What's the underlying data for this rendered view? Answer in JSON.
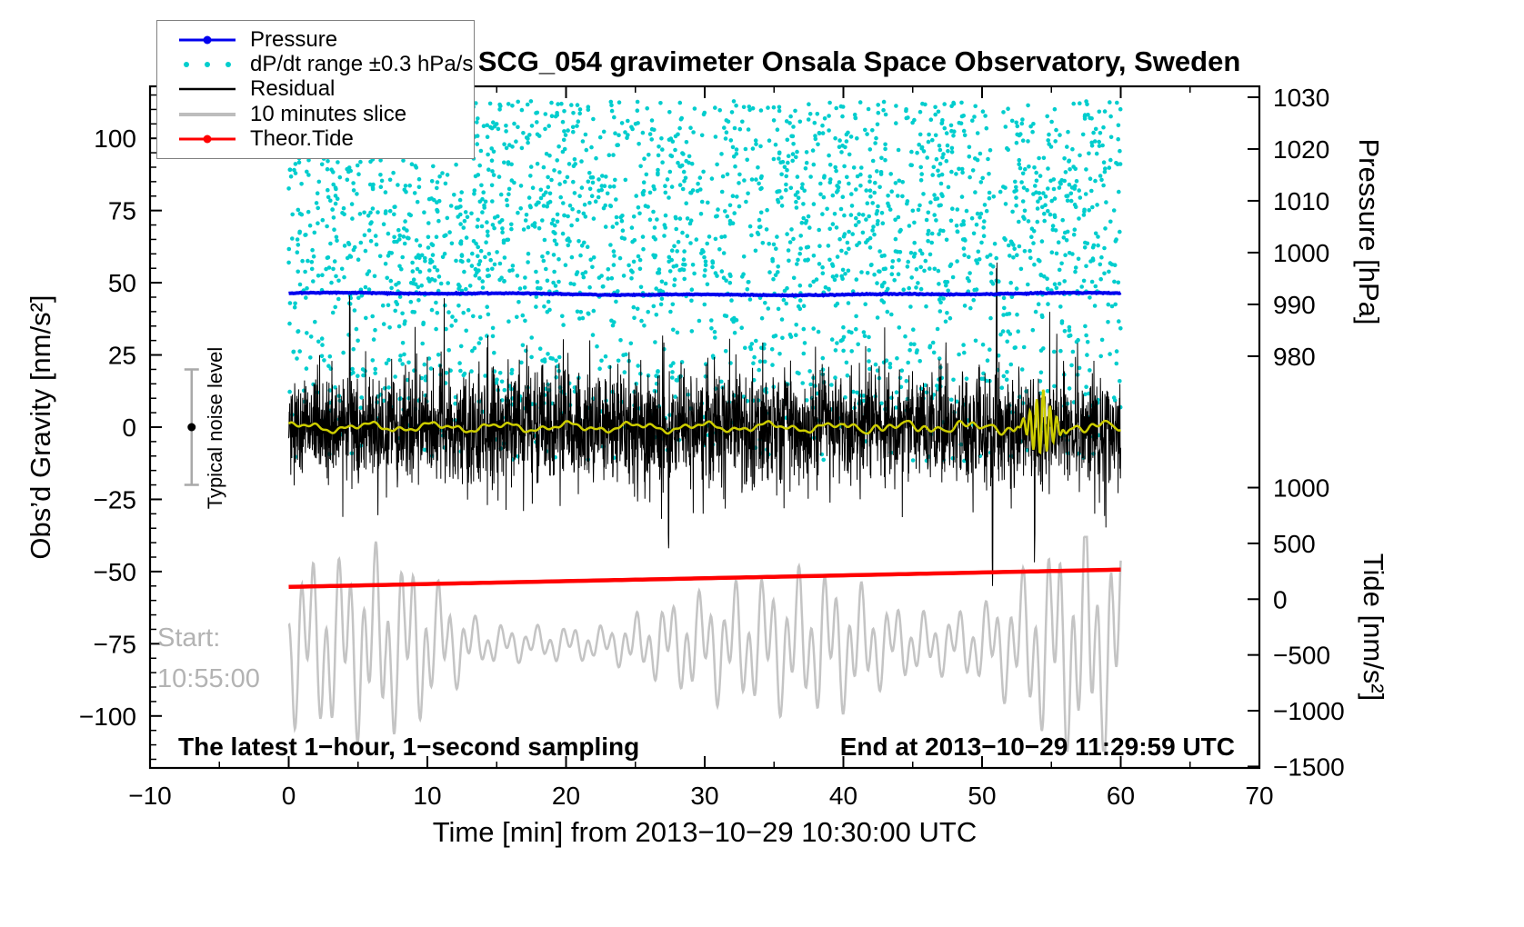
{
  "title": "SCG_054 gravimeter Onsala Space Observatory, Sweden",
  "legend": {
    "items": [
      {
        "label": "Pressure",
        "color": "#0000ee",
        "marker": "dot-line"
      },
      {
        "label": "dP/dt range ±0.3 hPa/s",
        "color": "#00cdcd",
        "marker": "dots"
      },
      {
        "label": "Residual",
        "color": "#000000",
        "marker": "line"
      },
      {
        "label": "10 minutes slice",
        "color": "#bdbdbd",
        "marker": "thick-line"
      },
      {
        "label": "Theor.Tide",
        "color": "#ff0000",
        "marker": "dot-line"
      }
    ]
  },
  "annotations": {
    "start_label": "Start:",
    "start_time": "10:55:00",
    "bottom_left": "The latest 1−hour, 1−second sampling",
    "bottom_right": "End at 2013−10−29 11:29:59 UTC"
  },
  "chart_data": {
    "type": "mixed",
    "title": "SCG_054 gravimeter Onsala Space Observatory, Sweden",
    "xlabel": "Time [min] from 2013−10−29 10:30:00 UTC",
    "legend_position": "top-left",
    "grid": false,
    "axes": {
      "x": {
        "range": [
          -10,
          70
        ],
        "ticks": [
          -10,
          0,
          10,
          20,
          30,
          40,
          50,
          60,
          70
        ],
        "minor_step": 5
      },
      "gravity": {
        "label": "Obs’d Gravity [nm/s²]",
        "side": "left",
        "range": [
          -118,
          118
        ],
        "ticks": [
          -100,
          -75,
          -50,
          -25,
          0,
          25,
          50,
          75,
          100
        ],
        "minor_step": 5
      },
      "pressure": {
        "label": "Pressure [hPa]",
        "side": "right-top",
        "range": [
          900.5,
          1032.1
        ],
        "ticks": [
          1030,
          1020,
          1010,
          1000,
          990,
          980
        ]
      },
      "tide": {
        "label": "Tide [nm/s²]",
        "side": "right-bottom",
        "range": [
          -1513,
          4597
        ],
        "ticks": [
          1000,
          500,
          0,
          -500,
          -1000,
          -1500
        ]
      }
    },
    "series": [
      {
        "name": "Pressure",
        "type": "line",
        "axis": "pressure",
        "color": "#0000ee",
        "width": 4,
        "x_span": [
          0,
          60
        ],
        "mean_hPa": 992,
        "variation_hPa": 0.3
      },
      {
        "name": "dP/dt range ±0.3 hPa/s",
        "type": "scatter",
        "axis": "gravity",
        "color": "#00cdcd",
        "dot_radius": 2.3,
        "count": 2600,
        "x_span": [
          0,
          60
        ],
        "bands": [
          {
            "min": 45,
            "max": 113,
            "weight": 0.72
          },
          {
            "min": 8,
            "max": 45,
            "weight": 0.22
          },
          {
            "min": -12,
            "max": 8,
            "weight": 0.06
          }
        ]
      },
      {
        "name": "Residual",
        "type": "noisy-line",
        "axis": "gravity",
        "color": "#000000",
        "width": 1,
        "x_span": [
          0,
          60
        ],
        "points": 3200,
        "mean": 0,
        "std": 9.5,
        "spike_prob": 0.08,
        "spike_std": 13,
        "min": -55,
        "max": 57,
        "events": [
          {
            "t": 4.4,
            "value": 44
          },
          {
            "t": 27.4,
            "value": -43
          },
          {
            "t": 50.75,
            "value": -53
          },
          {
            "t": 51.05,
            "value": 50
          },
          {
            "t": 53.8,
            "value": -42
          }
        ]
      },
      {
        "name": "Residual lowpass",
        "type": "smooth-line",
        "axis": "gravity",
        "color": "#cdcd00",
        "width": 2.5,
        "x_span": [
          0,
          60
        ],
        "amplitude": 2,
        "anomaly": {
          "t": 54.3,
          "amplitude": 11,
          "sigma": 0.7
        }
      },
      {
        "name": "10 minutes slice",
        "type": "oscillation",
        "axis": "gravity",
        "color": "#c4c4c4",
        "width": 2.5,
        "x_span": [
          0,
          60
        ],
        "mean": -75,
        "amp_base": 13,
        "amp_burst_t": [
          9.5,
          40,
          56
        ],
        "period_main": 0.9,
        "period_slow": 2.35
      },
      {
        "name": "Theor.Tide",
        "type": "line",
        "axis": "tide",
        "color": "#ff0000",
        "width": 4.5,
        "x_span": [
          0,
          60
        ],
        "start": 110,
        "end": 265
      }
    ],
    "noise_marker": {
      "label": "Typical noise level",
      "x": -7,
      "center": 0,
      "half_range": 20,
      "color": "#a9a9a9"
    }
  }
}
